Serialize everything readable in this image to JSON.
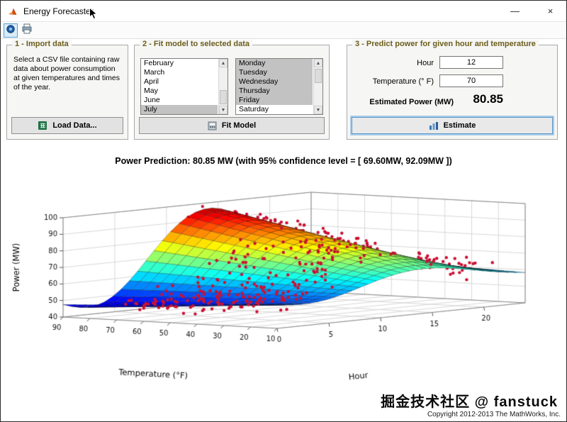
{
  "window": {
    "title": "Energy Forecaster",
    "minimize_glyph": "—",
    "close_glyph": "×"
  },
  "icons": {
    "up_arrow": "▲",
    "down_arrow": "▼"
  },
  "panels": {
    "import": {
      "title": "1 - Import data",
      "description": "Select a CSV file containing raw data about power consumption at given temperatures and times of the year.",
      "load_button": "Load Data..."
    },
    "fit": {
      "title": "2 - Fit model to selected data",
      "months": [
        "February",
        "March",
        "April",
        "May",
        "June",
        "July"
      ],
      "selected_month": "July",
      "days": [
        "Monday",
        "Tuesday",
        "Wednesday",
        "Thursday",
        "Friday",
        "Saturday"
      ],
      "selected_days": [
        "Monday",
        "Tuesday",
        "Wednesday",
        "Thursday",
        "Friday"
      ],
      "fit_button": "Fit Model"
    },
    "predict": {
      "title": "3 - Predict power for given hour and temperature",
      "hour_label": "Hour",
      "hour_value": "12",
      "temp_label": "Temperature (° F)",
      "temp_value": "70",
      "estimated_label": "Estimated Power (MW)",
      "estimated_value": "80.85",
      "estimate_button": "Estimate"
    }
  },
  "chart_data": {
    "type": "3d-surface-with-scatter",
    "title": "Power Prediction: 80.85 MW (with 95% confidence level = [ 69.60MW, 92.09MW ])",
    "xlabel": "Hour",
    "ylabel": "Temperature (°F)",
    "zlabel": "Power (MW)",
    "x_ticks": [
      0,
      5,
      10,
      15,
      20
    ],
    "y_ticks": [
      90,
      80,
      70,
      60,
      50,
      40,
      30,
      20,
      10
    ],
    "z_ticks": [
      40,
      50,
      60,
      70,
      80,
      90,
      100
    ],
    "x_range": [
      0,
      24
    ],
    "y_range": [
      10,
      90
    ],
    "z_range": [
      40,
      100
    ],
    "grid": true,
    "colormap": "jet",
    "scatter_color": "#cc1133",
    "scatter_series": "raw power measurements (red dots)",
    "surface_summary": {
      "description": "fitted power surface over hour and temperature",
      "peak_power_mw": 97,
      "peak_at": {
        "hour": 14,
        "temperature_f": 90
      },
      "valley_power_mw": 45,
      "valley_at": {
        "hour": 3.5,
        "temperature_f": 85
      }
    },
    "prediction": {
      "hour": 12,
      "temperature_f": 70,
      "power_mw": 80.85,
      "ci95_low_mw": 69.6,
      "ci95_high_mw": 92.09
    }
  },
  "footer": {
    "watermark": "掘金技术社区 @ fanstuck",
    "copyright": "Copyright 2012-2013 The MathWorks, Inc."
  }
}
